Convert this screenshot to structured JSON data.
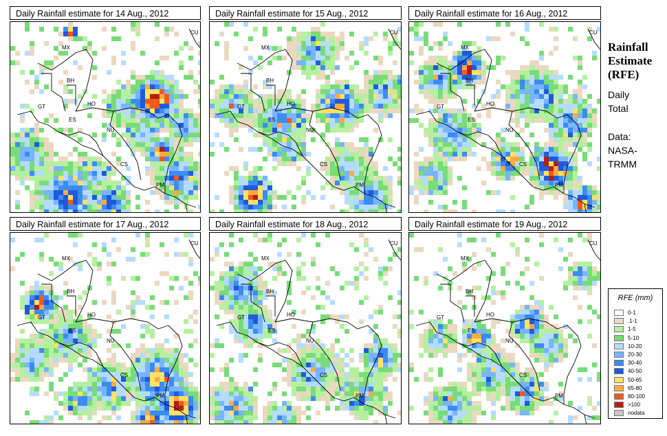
{
  "panels": [
    {
      "title": "Daily Rainfall estimate for  14 Aug., 2012"
    },
    {
      "title": "Daily Rainfall estimate for  15 Aug., 2012"
    },
    {
      "title": "Daily Rainfall estimate for  16 Aug., 2012"
    },
    {
      "title": "Daily Rainfall estimate for  17 Aug., 2012"
    },
    {
      "title": "Daily Rainfall estimate for  18 Aug., 2012"
    },
    {
      "title": "Daily Rainfall estimate for  19 Aug., 2012"
    }
  ],
  "country_labels": [
    "MX",
    "BH",
    "GT",
    "HO",
    "ES",
    "NU",
    "CS",
    "PM",
    "CU"
  ],
  "side": {
    "title": "Rainfall\nEstimate\n(RFE)",
    "period": "Daily\nTotal",
    "source": "Data:\nNASA-\nTRMM"
  },
  "legend": {
    "title": "RFE (mm)",
    "items": [
      {
        "label": "0-1",
        "color": "#ffffff"
      },
      {
        "label": ".1-1",
        "color": "#ead9c0"
      },
      {
        "label": "1-5",
        "color": "#b4f0a0"
      },
      {
        "label": "5-10",
        "color": "#78dc78"
      },
      {
        "label": "10-20",
        "color": "#b4dcff"
      },
      {
        "label": "20-30",
        "color": "#78b4ff"
      },
      {
        "label": "30-40",
        "color": "#3c8cf0"
      },
      {
        "label": "40-50",
        "color": "#1e5adc"
      },
      {
        "label": "50-65",
        "color": "#ffe164"
      },
      {
        "label": "65-80",
        "color": "#ffaa3c"
      },
      {
        "label": "80-100",
        "color": "#f05a1e"
      },
      {
        "label": ">100",
        "color": "#b41e14"
      },
      {
        "label": "nodata",
        "color": "#c8c8c8"
      }
    ]
  }
}
